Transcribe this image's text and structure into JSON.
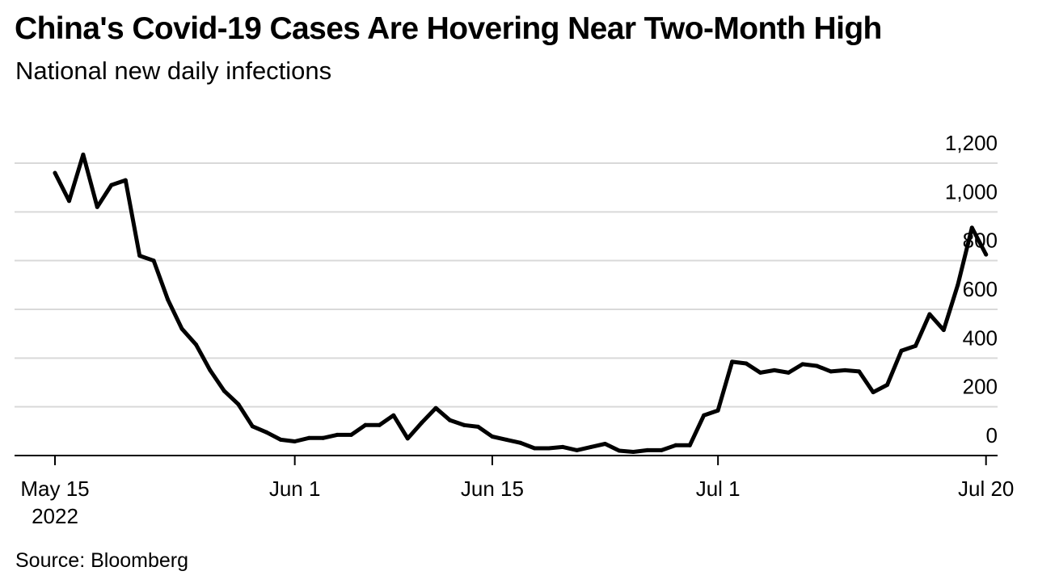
{
  "title": "China's Covid-19 Cases Are Hovering Near Two-Month High",
  "subtitle": "National new daily infections",
  "source": "Source: Bloomberg",
  "chart_data": {
    "type": "line",
    "xlabel": "",
    "ylabel": "",
    "ylim": [
      0,
      1200
    ],
    "xlim": [
      "2022-05-15",
      "2022-07-23"
    ],
    "grid": true,
    "y_ticks": [
      {
        "value": 0,
        "label": "0"
      },
      {
        "value": 200,
        "label": "200"
      },
      {
        "value": 400,
        "label": "400"
      },
      {
        "value": 600,
        "label": "600"
      },
      {
        "value": 800,
        "label": "800"
      },
      {
        "value": 1000,
        "label": "1,000"
      },
      {
        "value": 1200,
        "label": "1,200"
      }
    ],
    "x_ticks": [
      {
        "date": "2022-05-15",
        "label": "May 15",
        "sublabel": "2022"
      },
      {
        "date": "2022-06-01",
        "label": "Jun 1",
        "sublabel": ""
      },
      {
        "date": "2022-06-15",
        "label": "Jun 15",
        "sublabel": ""
      },
      {
        "date": "2022-07-01",
        "label": "Jul 1",
        "sublabel": ""
      },
      {
        "date": "2022-07-20",
        "label": "Jul 20",
        "sublabel": ""
      }
    ],
    "series": [
      {
        "x": [
          "2022-05-15",
          "2022-05-16",
          "2022-05-17",
          "2022-05-18",
          "2022-05-19",
          "2022-05-20",
          "2022-05-21",
          "2022-05-22",
          "2022-05-23",
          "2022-05-24",
          "2022-05-25",
          "2022-05-26",
          "2022-05-27",
          "2022-05-28",
          "2022-05-29",
          "2022-05-30",
          "2022-05-31",
          "2022-06-01",
          "2022-06-02",
          "2022-06-03",
          "2022-06-04",
          "2022-06-05",
          "2022-06-06",
          "2022-06-07",
          "2022-06-08",
          "2022-06-09",
          "2022-06-10",
          "2022-06-11",
          "2022-06-12",
          "2022-06-13",
          "2022-06-14",
          "2022-06-15",
          "2022-06-16",
          "2022-06-17",
          "2022-06-18",
          "2022-06-19",
          "2022-06-20",
          "2022-06-21",
          "2022-06-22",
          "2022-06-23",
          "2022-06-24",
          "2022-06-25",
          "2022-06-26",
          "2022-06-27",
          "2022-06-28",
          "2022-06-29",
          "2022-06-30",
          "2022-07-01",
          "2022-07-02",
          "2022-07-03",
          "2022-07-04",
          "2022-07-05",
          "2022-07-06",
          "2022-07-07",
          "2022-07-08",
          "2022-07-09",
          "2022-07-10",
          "2022-07-11",
          "2022-07-12",
          "2022-07-13",
          "2022-07-14",
          "2022-07-15",
          "2022-07-16",
          "2022-07-17",
          "2022-07-18",
          "2022-07-19",
          "2022-07-20"
        ],
        "values": [
          1160,
          1045,
          1235,
          1020,
          1110,
          1130,
          820,
          800,
          640,
          520,
          455,
          350,
          265,
          210,
          120,
          95,
          65,
          58,
          72,
          72,
          85,
          85,
          125,
          125,
          165,
          70,
          135,
          195,
          145,
          125,
          118,
          78,
          65,
          52,
          30,
          30,
          35,
          22,
          35,
          48,
          20,
          15,
          22,
          22,
          42,
          42,
          165,
          185,
          385,
          378,
          340,
          350,
          340,
          375,
          368,
          345,
          350,
          345,
          260,
          290,
          430,
          450,
          580,
          515,
          700,
          935,
          825
        ]
      }
    ]
  }
}
